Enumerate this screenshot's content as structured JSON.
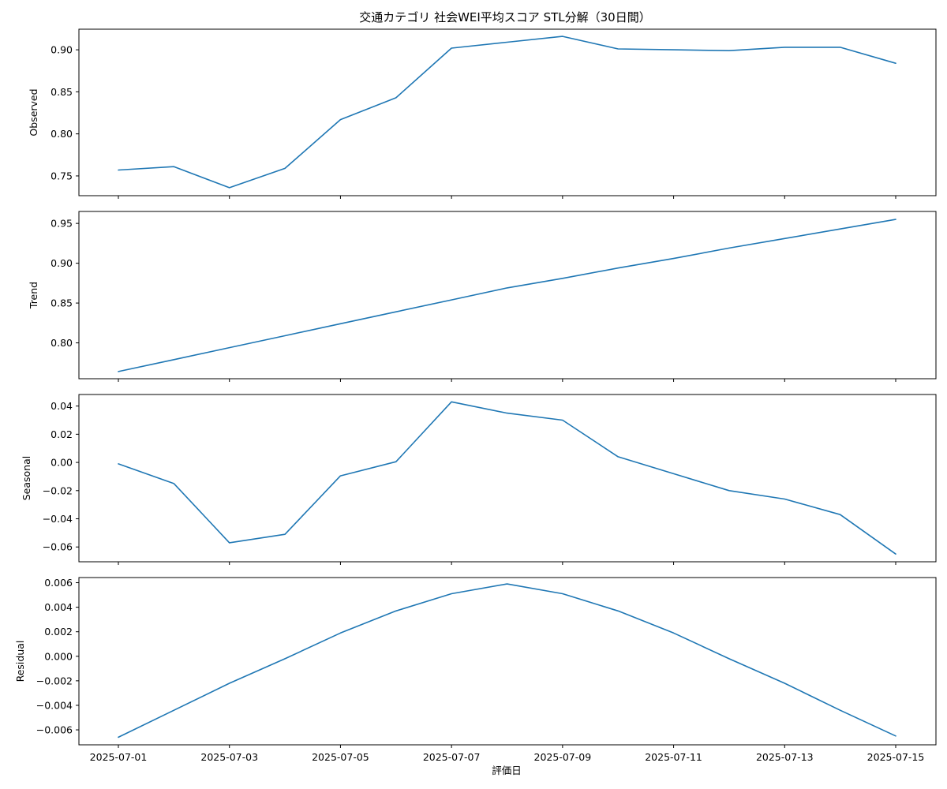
{
  "chart_data": {
    "type": "line",
    "title": "交通カテゴリ 社会WEI平均スコア STL分解（30日間）",
    "xlabel": "評価日",
    "line_color": "#1f77b4",
    "x": [
      "2025-07-01",
      "2025-07-02",
      "2025-07-03",
      "2025-07-04",
      "2025-07-05",
      "2025-07-06",
      "2025-07-07",
      "2025-07-08",
      "2025-07-09",
      "2025-07-10",
      "2025-07-11",
      "2025-07-12",
      "2025-07-13",
      "2025-07-14",
      "2025-07-15"
    ],
    "x_tick_labels": [
      "2025-07-01",
      "2025-07-03",
      "2025-07-05",
      "2025-07-07",
      "2025-07-09",
      "2025-07-11",
      "2025-07-13",
      "2025-07-15"
    ],
    "panels": [
      {
        "ylabel": "Observed",
        "ylim": [
          0.7265,
          0.9245
        ],
        "y_ticks": [
          0.75,
          0.8,
          0.85,
          0.9
        ],
        "y_tick_labels": [
          "0.75",
          "0.80",
          "0.85",
          "0.90"
        ],
        "values": [
          0.757,
          0.761,
          0.736,
          0.759,
          0.817,
          0.843,
          0.902,
          0.909,
          0.916,
          0.901,
          0.9,
          0.899,
          0.903,
          0.903,
          0.884
        ]
      },
      {
        "ylabel": "Trend",
        "ylim": [
          0.755,
          0.965
        ],
        "y_ticks": [
          0.8,
          0.85,
          0.9,
          0.95
        ],
        "y_tick_labels": [
          "0.80",
          "0.85",
          "0.90",
          "0.95"
        ],
        "values": [
          0.764,
          0.779,
          0.794,
          0.809,
          0.824,
          0.839,
          0.854,
          0.869,
          0.881,
          0.894,
          0.906,
          0.919,
          0.931,
          0.943,
          0.955
        ]
      },
      {
        "ylabel": "Seasonal",
        "ylim": [
          -0.0705,
          0.0482
        ],
        "y_ticks": [
          -0.06,
          -0.04,
          -0.02,
          0.0,
          0.02,
          0.04
        ],
        "y_tick_labels": [
          "−0.06",
          "−0.04",
          "−0.02",
          "0.00",
          "0.02",
          "0.04"
        ],
        "values": [
          -0.001,
          -0.015,
          -0.057,
          -0.051,
          -0.0095,
          0.0005,
          0.043,
          0.035,
          0.03,
          0.004,
          -0.008,
          -0.02,
          -0.026,
          -0.037,
          -0.065
        ]
      },
      {
        "ylabel": "Residual",
        "ylim": [
          -0.00722,
          0.00642
        ],
        "y_ticks": [
          -0.006,
          -0.004,
          -0.002,
          0.0,
          0.002,
          0.004,
          0.006
        ],
        "y_tick_labels": [
          "−0.006",
          "−0.004",
          "−0.002",
          "0.000",
          "0.002",
          "0.004",
          "0.006"
        ],
        "values": [
          -0.0066,
          -0.0044,
          -0.0022,
          -0.0002,
          0.0019,
          0.0037,
          0.0051,
          0.0059,
          0.0051,
          0.0037,
          0.0019,
          -0.0002,
          -0.0022,
          -0.0044,
          -0.0065
        ]
      }
    ]
  }
}
